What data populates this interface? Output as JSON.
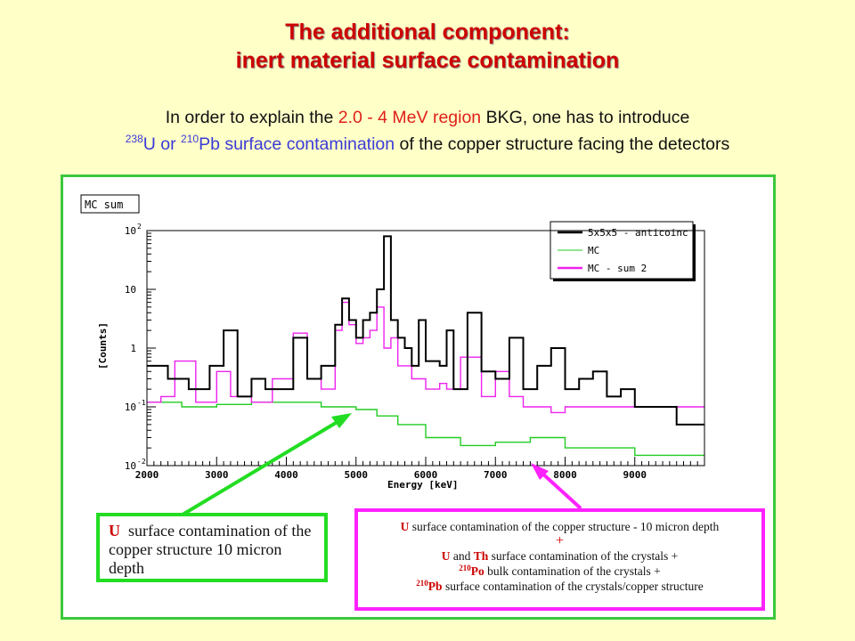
{
  "title_line1": "The additional component:",
  "title_line2": "inert material surface contamination",
  "intro": {
    "p1": "In order to explain the ",
    "p2": "2.0 - 4 MeV region",
    "p3": " BKG, one has to introduce",
    "sup1": "238",
    "p4": "U or ",
    "sup2": "210",
    "p5": "Pb surface contamination",
    "p6": " of the copper structure facing the detectors"
  },
  "left_box": {
    "bold": "U",
    "text": "surface contamination of the copper structure 10 micron depth"
  },
  "right_box": {
    "l1_b": "U",
    "l1": " surface contamination of the copper structure - 10 micron depth",
    "plus": "+",
    "l2_b1": "U",
    "l2_mid": " and ",
    "l2_b2": "Th",
    "l2": " surface contamination of the crystals +",
    "l3_sup": "210",
    "l3_b": "Po",
    "l3": " bulk contamination of the crystals +",
    "l4_sup": "210",
    "l4_b": "Pb",
    "l4": " surface contamination of the crystals/copper structure"
  },
  "colors": {
    "accent_green": "#3cc83c",
    "accent_magenta": "#ff22ff",
    "title_red": "#cc0000"
  },
  "chart_data": {
    "type": "line",
    "title": "MC sum",
    "xlabel": "Energy [keV]",
    "ylabel": "[Counts]",
    "xlim": [
      2000,
      10000
    ],
    "ylim": [
      0.01,
      100
    ],
    "log_y": true,
    "x_ticks": [
      2000,
      3000,
      4000,
      5000,
      6000,
      7000,
      8000,
      9000
    ],
    "y_ticks": [
      {
        "v": 0.01,
        "base": "10",
        "exp": "-2"
      },
      {
        "v": 0.1,
        "base": "10",
        "exp": "-1"
      },
      {
        "v": 1,
        "base": "1",
        "exp": ""
      },
      {
        "v": 10,
        "base": "10",
        "exp": ""
      },
      {
        "v": 100,
        "base": "10",
        "exp": "2"
      }
    ],
    "legend_position": "top-right",
    "series": [
      {
        "name": "5x5x5 - anticoinc",
        "color": "#000000",
        "x": [
          2000,
          2300,
          2600,
          2900,
          3100,
          3300,
          3500,
          3700,
          3900,
          4100,
          4300,
          4500,
          4700,
          4800,
          4900,
          5000,
          5100,
          5200,
          5300,
          5400,
          5500,
          5600,
          5700,
          5800,
          5900,
          6000,
          6200,
          6300,
          6400,
          6600,
          6800,
          7000,
          7200,
          7400,
          7600,
          7800,
          8000,
          8200,
          8400,
          8600,
          8800,
          9000,
          9300,
          9600,
          9900
        ],
        "y": [
          0.5,
          0.3,
          0.2,
          0.5,
          2,
          0.15,
          0.3,
          0.2,
          0.2,
          1.5,
          0.3,
          0.5,
          2.5,
          7,
          3,
          1.5,
          3,
          4,
          10,
          80,
          3,
          1.5,
          1,
          0.5,
          3,
          0.6,
          0.5,
          2,
          0.2,
          4,
          0.4,
          0.3,
          1.5,
          0.2,
          0.5,
          1,
          0.2,
          0.3,
          0.4,
          0.15,
          0.2,
          0.1,
          0.1,
          0.05,
          0.05
        ]
      },
      {
        "name": "MC",
        "color": "#22cc22",
        "x": [
          2000,
          2500,
          3000,
          3500,
          4000,
          4500,
          4800,
          5000,
          5300,
          5600,
          6000,
          6500,
          7000,
          7500,
          8000,
          8500,
          9000,
          9500,
          9900
        ],
        "y": [
          0.12,
          0.1,
          0.11,
          0.12,
          0.12,
          0.1,
          0.1,
          0.09,
          0.07,
          0.05,
          0.03,
          0.022,
          0.025,
          0.03,
          0.02,
          0.02,
          0.015,
          0.015,
          0.015
        ]
      },
      {
        "name": "MC - sum 2",
        "color": "#ee22ee",
        "x": [
          2000,
          2200,
          2400,
          2700,
          3000,
          3200,
          3500,
          3800,
          4100,
          4300,
          4500,
          4700,
          4800,
          4900,
          5000,
          5100,
          5200,
          5300,
          5400,
          5500,
          5600,
          5800,
          6000,
          6200,
          6300,
          6500,
          6800,
          7000,
          7200,
          7400,
          7600,
          7800,
          8000
        ],
        "y": [
          0.12,
          0.15,
          0.6,
          0.12,
          0.4,
          0.15,
          0.12,
          0.3,
          1.8,
          0.3,
          0.2,
          2,
          6,
          2.5,
          1.2,
          1.5,
          2,
          5,
          1,
          1.5,
          0.5,
          0.3,
          0.2,
          0.25,
          0.2,
          0.7,
          0.15,
          0.4,
          0.15,
          0.1,
          0.1,
          0.08,
          0.1
        ]
      }
    ]
  }
}
